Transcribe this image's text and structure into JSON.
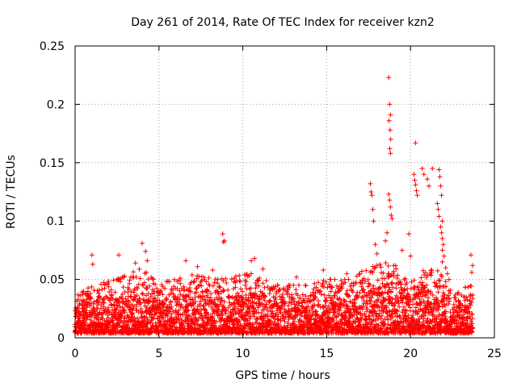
{
  "chart_data": {
    "type": "scatter",
    "title": "Day 261 of 2014, Rate Of TEC Index for receiver kzn2",
    "xlabel": "GPS time / hours",
    "ylabel": "ROTI / TECUs",
    "xlim": [
      0,
      25
    ],
    "ylim": [
      0,
      0.25
    ],
    "xticks": [
      0,
      5,
      10,
      15,
      20,
      25
    ],
    "xtick_labels": [
      "0",
      "5",
      "10",
      "15",
      "20",
      "25"
    ],
    "yticks": [
      0,
      0.05,
      0.1,
      0.15,
      0.2,
      0.25
    ],
    "ytick_labels": [
      "0",
      "0.05",
      "0.1",
      "0.15",
      "0.2",
      "0.25"
    ],
    "grid": true,
    "marker": "+",
    "series_color": "#ff0000",
    "baseline_envelope": [
      {
        "x": 0.0,
        "low": 0.004,
        "high": 0.035
      },
      {
        "x": 1.0,
        "low": 0.004,
        "high": 0.045
      },
      {
        "x": 2.5,
        "low": 0.004,
        "high": 0.05
      },
      {
        "x": 4.0,
        "low": 0.004,
        "high": 0.06
      },
      {
        "x": 5.0,
        "low": 0.004,
        "high": 0.045
      },
      {
        "x": 6.5,
        "low": 0.004,
        "high": 0.055
      },
      {
        "x": 8.5,
        "low": 0.004,
        "high": 0.05
      },
      {
        "x": 10.5,
        "low": 0.004,
        "high": 0.055
      },
      {
        "x": 12.0,
        "low": 0.004,
        "high": 0.045
      },
      {
        "x": 14.0,
        "low": 0.004,
        "high": 0.045
      },
      {
        "x": 15.0,
        "low": 0.004,
        "high": 0.05
      },
      {
        "x": 16.5,
        "low": 0.004,
        "high": 0.05
      },
      {
        "x": 17.5,
        "low": 0.004,
        "high": 0.06
      },
      {
        "x": 18.7,
        "low": 0.004,
        "high": 0.065
      },
      {
        "x": 20.0,
        "low": 0.004,
        "high": 0.055
      },
      {
        "x": 21.5,
        "low": 0.004,
        "high": 0.06
      },
      {
        "x": 22.5,
        "low": 0.004,
        "high": 0.04
      },
      {
        "x": 23.7,
        "low": 0.004,
        "high": 0.045
      }
    ],
    "peaks": [
      {
        "x": 0.3,
        "y": 0.036
      },
      {
        "x": 1.0,
        "y": 0.071
      },
      {
        "x": 1.05,
        "y": 0.063
      },
      {
        "x": 2.6,
        "y": 0.071
      },
      {
        "x": 2.9,
        "y": 0.052
      },
      {
        "x": 3.6,
        "y": 0.064
      },
      {
        "x": 4.0,
        "y": 0.081
      },
      {
        "x": 4.2,
        "y": 0.074
      },
      {
        "x": 4.3,
        "y": 0.066
      },
      {
        "x": 6.6,
        "y": 0.066
      },
      {
        "x": 7.3,
        "y": 0.061
      },
      {
        "x": 8.2,
        "y": 0.058
      },
      {
        "x": 8.8,
        "y": 0.089
      },
      {
        "x": 8.85,
        "y": 0.082
      },
      {
        "x": 8.9,
        "y": 0.083
      },
      {
        "x": 10.5,
        "y": 0.066
      },
      {
        "x": 10.7,
        "y": 0.068
      },
      {
        "x": 11.2,
        "y": 0.059
      },
      {
        "x": 13.2,
        "y": 0.052
      },
      {
        "x": 14.8,
        "y": 0.058
      },
      {
        "x": 16.2,
        "y": 0.055
      },
      {
        "x": 17.1,
        "y": 0.057
      },
      {
        "x": 17.6,
        "y": 0.132
      },
      {
        "x": 17.65,
        "y": 0.125
      },
      {
        "x": 17.7,
        "y": 0.122
      },
      {
        "x": 17.75,
        "y": 0.11
      },
      {
        "x": 17.8,
        "y": 0.1
      },
      {
        "x": 17.9,
        "y": 0.08
      },
      {
        "x": 18.0,
        "y": 0.072
      },
      {
        "x": 18.5,
        "y": 0.083
      },
      {
        "x": 18.6,
        "y": 0.09
      },
      {
        "x": 18.7,
        "y": 0.223
      },
      {
        "x": 18.75,
        "y": 0.2
      },
      {
        "x": 18.8,
        "y": 0.191
      },
      {
        "x": 18.72,
        "y": 0.186
      },
      {
        "x": 18.78,
        "y": 0.178
      },
      {
        "x": 18.82,
        "y": 0.17
      },
      {
        "x": 18.76,
        "y": 0.162
      },
      {
        "x": 18.8,
        "y": 0.158
      },
      {
        "x": 18.7,
        "y": 0.123
      },
      {
        "x": 18.75,
        "y": 0.118
      },
      {
        "x": 18.8,
        "y": 0.112
      },
      {
        "x": 18.85,
        "y": 0.105
      },
      {
        "x": 18.9,
        "y": 0.102
      },
      {
        "x": 19.5,
        "y": 0.075
      },
      {
        "x": 19.9,
        "y": 0.089
      },
      {
        "x": 20.0,
        "y": 0.07
      },
      {
        "x": 20.3,
        "y": 0.167
      },
      {
        "x": 20.2,
        "y": 0.14
      },
      {
        "x": 20.25,
        "y": 0.135
      },
      {
        "x": 20.3,
        "y": 0.131
      },
      {
        "x": 20.35,
        "y": 0.126
      },
      {
        "x": 20.4,
        "y": 0.122
      },
      {
        "x": 20.7,
        "y": 0.145
      },
      {
        "x": 20.8,
        "y": 0.14
      },
      {
        "x": 21.0,
        "y": 0.136
      },
      {
        "x": 21.1,
        "y": 0.13
      },
      {
        "x": 21.3,
        "y": 0.145
      },
      {
        "x": 21.7,
        "y": 0.144
      },
      {
        "x": 21.75,
        "y": 0.138
      },
      {
        "x": 21.8,
        "y": 0.13
      },
      {
        "x": 21.85,
        "y": 0.122
      },
      {
        "x": 21.6,
        "y": 0.115
      },
      {
        "x": 21.65,
        "y": 0.11
      },
      {
        "x": 21.7,
        "y": 0.104
      },
      {
        "x": 21.9,
        "y": 0.1
      },
      {
        "x": 21.8,
        "y": 0.095
      },
      {
        "x": 21.85,
        "y": 0.09
      },
      {
        "x": 21.9,
        "y": 0.085
      },
      {
        "x": 21.95,
        "y": 0.08
      },
      {
        "x": 21.9,
        "y": 0.075
      },
      {
        "x": 22.0,
        "y": 0.07
      },
      {
        "x": 21.9,
        "y": 0.065
      },
      {
        "x": 22.1,
        "y": 0.06
      },
      {
        "x": 22.2,
        "y": 0.055
      },
      {
        "x": 22.3,
        "y": 0.05
      },
      {
        "x": 23.6,
        "y": 0.071
      },
      {
        "x": 23.7,
        "y": 0.062
      },
      {
        "x": 23.65,
        "y": 0.056
      }
    ]
  }
}
